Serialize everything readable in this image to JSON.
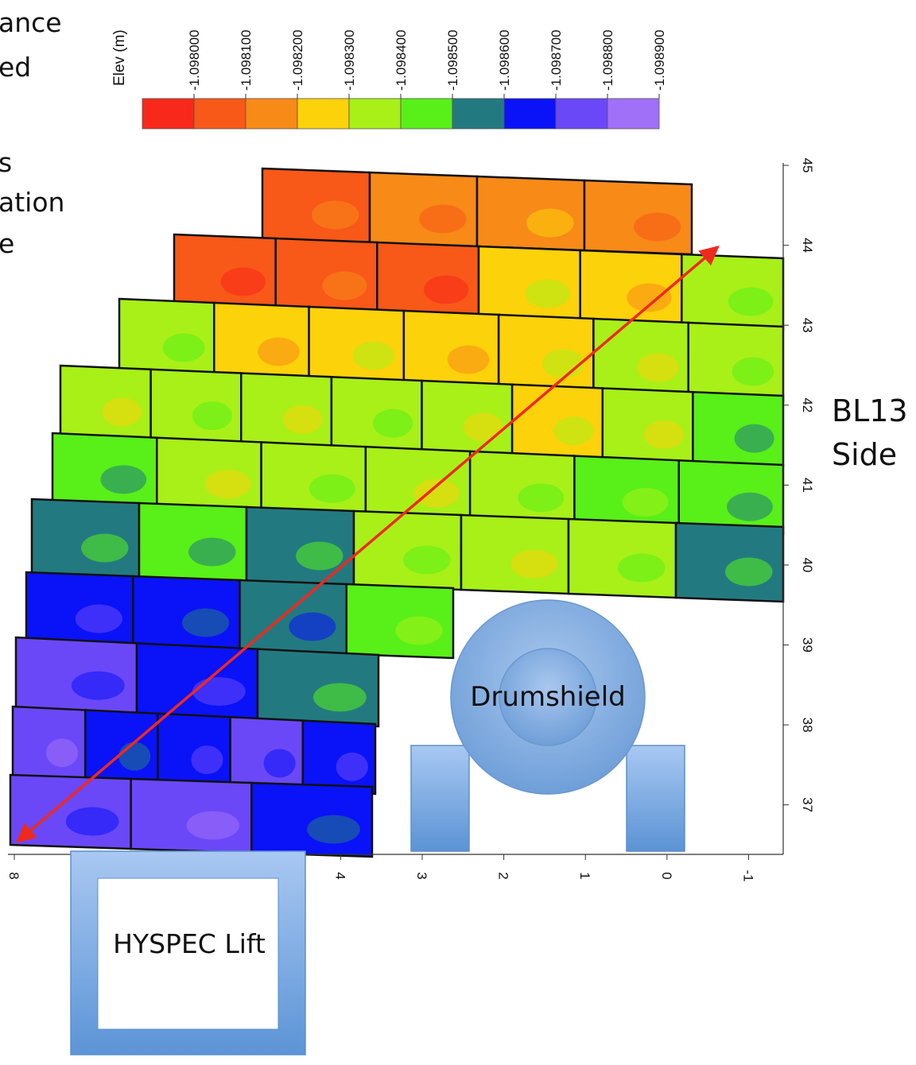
{
  "side_text": [
    "ance",
    "ed",
    "s",
    "ation",
    "e"
  ],
  "side_label": {
    "line1": "BL13",
    "line2": "Side"
  },
  "legend": {
    "title": "Elev (m)",
    "ticks": [
      "-1.098000",
      "-1.098100",
      "-1.098200",
      "-1.098300",
      "-1.098400",
      "-1.098500",
      "-1.098600",
      "-1.098700",
      "-1.098800",
      "-1.098900"
    ],
    "colors": [
      "#f8281a",
      "#f85818",
      "#f88a18",
      "#fcd20a",
      "#a8f018",
      "#58f018",
      "#227a80",
      "#0a12f8",
      "#6a48f8",
      "#a070f8"
    ]
  },
  "overlays": {
    "drumshield_label": "Drumshield",
    "lift_label": "HYSPEC Lift"
  },
  "chart_data": {
    "type": "heatmap",
    "title": "",
    "xlabel": "",
    "ylabel": "",
    "x_ticks": [
      "8",
      "4",
      "3",
      "2",
      "1",
      "0",
      "-1"
    ],
    "y_ticks": [
      "45",
      "44",
      "43",
      "42",
      "41",
      "40",
      "39",
      "38",
      "37"
    ],
    "xlim": [
      8,
      -1.6
    ],
    "ylim": [
      36.4,
      45.1
    ],
    "z_label": "Elev (m)",
    "z_range": [
      -1.0989,
      -1.098
    ],
    "cell_levels": [
      [
        1,
        2,
        2,
        2
      ],
      [
        1,
        1,
        1,
        3,
        3,
        4
      ],
      [
        4,
        3,
        3,
        3,
        3,
        4,
        4
      ],
      [
        4,
        4,
        4,
        4,
        4,
        3,
        4,
        5
      ],
      [
        5,
        4,
        4,
        4,
        4,
        5,
        5
      ],
      [
        6,
        5,
        6,
        4,
        4,
        4,
        6
      ],
      [
        7,
        7,
        6,
        5
      ],
      [
        8,
        7,
        6
      ],
      [
        8,
        7,
        7,
        8,
        7
      ],
      [
        8,
        8,
        7
      ]
    ],
    "diagonal_arrow": {
      "from": [
        8.0,
        36.5
      ],
      "to": [
        -0.8,
        44.0
      ]
    }
  }
}
